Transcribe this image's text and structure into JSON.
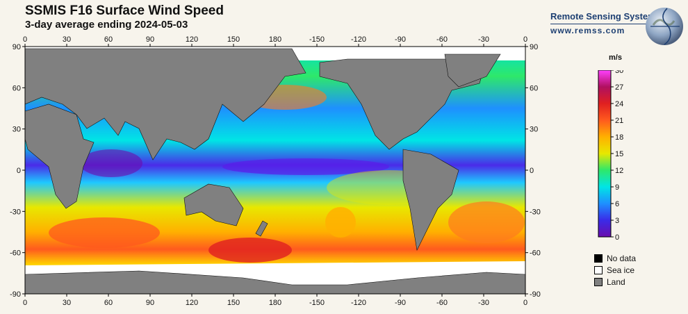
{
  "header": {
    "title": "SSMIS F16 Surface Wind Speed",
    "subtitle": "3-day average ending 2024-05-03"
  },
  "brand": {
    "name": "Remote Sensing Systems",
    "url": "www.remss.com"
  },
  "map": {
    "lon_ticks": [
      "0",
      "30",
      "60",
      "90",
      "120",
      "150",
      "180",
      "-150",
      "-120",
      "-90",
      "-60",
      "-30",
      "0"
    ],
    "lat_ticks": [
      "90",
      "60",
      "30",
      "0",
      "-30",
      "-60",
      "-90"
    ],
    "colors": {
      "land": "#808080",
      "sea_ice": "#ffffff",
      "no_data": "#000000"
    }
  },
  "colorbar": {
    "unit": "m/s",
    "ticks": [
      "30",
      "27",
      "24",
      "21",
      "18",
      "15",
      "12",
      "9",
      "6",
      "3",
      "0"
    ],
    "range": [
      0,
      30
    ],
    "stops": [
      "#6a0dad",
      "#3a2be8",
      "#1e90ff",
      "#00e5e5",
      "#2ee86a",
      "#e8e800",
      "#ffb000",
      "#ff5a1e",
      "#e02020",
      "#b01060",
      "#ff40ff"
    ]
  },
  "legend": {
    "items": [
      {
        "label": "No data",
        "color": "#000000"
      },
      {
        "label": "Sea ice",
        "color": "#ffffff"
      },
      {
        "label": "Land",
        "color": "#808080"
      }
    ]
  }
}
